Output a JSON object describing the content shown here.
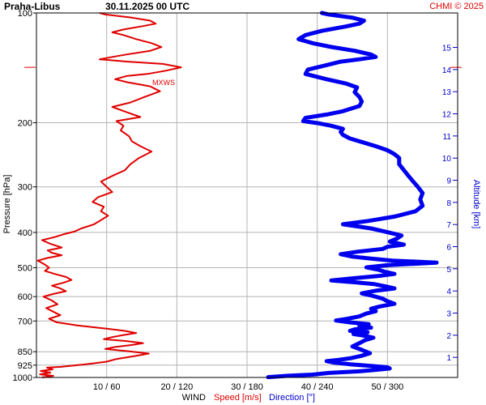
{
  "header": {
    "station": "Praha-Libus",
    "datetime": "30.11.2025 00 UTC",
    "copyright": "CHMI © 2025"
  },
  "axis_labels": {
    "pressure": "Pressure [hPa]",
    "altitude": "Altitude [km]",
    "wind": "WIND",
    "speed": "Speed [m/s]",
    "direction": "Direction [°]"
  },
  "colors": {
    "speed": "#e00000",
    "direction": "#0000ee",
    "altitude_axis": "#0000cc",
    "grid": "#b4b4b4"
  },
  "chart_data": {
    "type": "line",
    "title": "Praha-Libus 30.11.2025 00 UTC",
    "xlabel": "WIND Speed [m/s] / Direction [°]",
    "ylabel": "Pressure [hPa]",
    "y2label": "Altitude [km]",
    "y_scale": "log",
    "ylim": [
      1000,
      100
    ],
    "speed_xlim": [
      0,
      60
    ],
    "direction_xlim": [
      0,
      360
    ],
    "grid": true,
    "x_ticks": [
      "10 / 60",
      "20 / 120",
      "30 / 180",
      "40 / 240",
      "50 / 300"
    ],
    "pressure_ticks": [
      100,
      200,
      300,
      400,
      500,
      600,
      700,
      850,
      925,
      1000
    ],
    "altitude_ticks": [
      1,
      2,
      3,
      4,
      5,
      6,
      7,
      8,
      9,
      10,
      11,
      12,
      13,
      14,
      15
    ],
    "annotation": "MXWS",
    "max_wind_pressure": 141,
    "series": [
      {
        "name": "Speed [m/s]",
        "unit": "m/s",
        "points": [
          [
            1000,
            0.8
          ],
          [
            990,
            2.4
          ],
          [
            980,
            0.5
          ],
          [
            970,
            2.0
          ],
          [
            960,
            0.6
          ],
          [
            950,
            2.3
          ],
          [
            940,
            1.5
          ],
          [
            935,
            3.5
          ],
          [
            920,
            7.0
          ],
          [
            905,
            10.0
          ],
          [
            890,
            11.4
          ],
          [
            875,
            13.8
          ],
          [
            860,
            16.0
          ],
          [
            848,
            13.2
          ],
          [
            835,
            9.8
          ],
          [
            825,
            11.2
          ],
          [
            815,
            13.5
          ],
          [
            805,
            15.2
          ],
          [
            795,
            13.0
          ],
          [
            785,
            9.6
          ],
          [
            775,
            10.8
          ],
          [
            765,
            12.4
          ],
          [
            755,
            14.2
          ],
          [
            745,
            12.6
          ],
          [
            735,
            10.0
          ],
          [
            720,
            5.8
          ],
          [
            705,
            2.8
          ],
          [
            690,
            1.8
          ],
          [
            675,
            3.4
          ],
          [
            660,
            2.4
          ],
          [
            645,
            1.4
          ],
          [
            630,
            3.0
          ],
          [
            615,
            2.2
          ],
          [
            600,
            1.0
          ],
          [
            590,
            2.4
          ],
          [
            580,
            4.2
          ],
          [
            570,
            3.4
          ],
          [
            560,
            2.2
          ],
          [
            550,
            3.8
          ],
          [
            540,
            5.0
          ],
          [
            530,
            4.2
          ],
          [
            520,
            2.6
          ],
          [
            510,
            1.2
          ],
          [
            500,
            1.8
          ],
          [
            490,
            1.2
          ],
          [
            478,
            0.2
          ],
          [
            470,
            1.6
          ],
          [
            462,
            3.6
          ],
          [
            455,
            2.2
          ],
          [
            448,
            1.6
          ],
          [
            440,
            3.6
          ],
          [
            430,
            2.0
          ],
          [
            420,
            0.8
          ],
          [
            412,
            2.6
          ],
          [
            405,
            3.8
          ],
          [
            398,
            5.4
          ],
          [
            390,
            6.4
          ],
          [
            380,
            8.2
          ],
          [
            370,
            9.2
          ],
          [
            360,
            10.2
          ],
          [
            350,
            9.2
          ],
          [
            340,
            9.6
          ],
          [
            330,
            8.0
          ],
          [
            320,
            8.8
          ],
          [
            310,
            10.8
          ],
          [
            300,
            10.0
          ],
          [
            290,
            9.2
          ],
          [
            280,
            10.8
          ],
          [
            270,
            12.6
          ],
          [
            260,
            13.4
          ],
          [
            250,
            14.6
          ],
          [
            240,
            16.4
          ],
          [
            232,
            14.8
          ],
          [
            225,
            13.6
          ],
          [
            218,
            13.2
          ],
          [
            210,
            12.0
          ],
          [
            204,
            12.4
          ],
          [
            198,
            11.4
          ],
          [
            193,
            14.8
          ],
          [
            187,
            12.8
          ],
          [
            181,
            10.8
          ],
          [
            176,
            13.4
          ],
          [
            170,
            15.4
          ],
          [
            164,
            17.6
          ],
          [
            159,
            16.2
          ],
          [
            155,
            13.0
          ],
          [
            152,
            11.2
          ],
          [
            149,
            12.8
          ],
          [
            147,
            15.8
          ],
          [
            144,
            18.4
          ],
          [
            141,
            20.6
          ],
          [
            138,
            18.0
          ],
          [
            136,
            13.0
          ],
          [
            134,
            9.0
          ],
          [
            132,
            10.8
          ],
          [
            130,
            12.8
          ],
          [
            127,
            16.2
          ],
          [
            124,
            17.8
          ],
          [
            121,
            16.4
          ],
          [
            118,
            14.2
          ],
          [
            115,
            12.4
          ],
          [
            113,
            10.8
          ],
          [
            111,
            12.4
          ],
          [
            109,
            14.8
          ],
          [
            107,
            17.0
          ],
          [
            105,
            16.2
          ],
          [
            103,
            13.6
          ],
          [
            101,
            9.8
          ],
          [
            100,
            9.0
          ]
        ]
      },
      {
        "name": "Direction [°]",
        "unit": "deg",
        "points": [
          [
            998,
            198
          ],
          [
            990,
            214
          ],
          [
            982,
            236
          ],
          [
            972,
            250
          ],
          [
            962,
            276
          ],
          [
            953,
            290
          ],
          [
            945,
            302
          ],
          [
            938,
            300
          ],
          [
            930,
            286
          ],
          [
            920,
            268
          ],
          [
            910,
            254
          ],
          [
            902,
            248
          ],
          [
            895,
            258
          ],
          [
            885,
            269
          ],
          [
            872,
            278
          ],
          [
            858,
            285
          ],
          [
            840,
            278
          ],
          [
            822,
            270
          ],
          [
            805,
            276
          ],
          [
            790,
            281
          ],
          [
            778,
            288
          ],
          [
            768,
            280
          ],
          [
            760,
            271
          ],
          [
            752,
            283
          ],
          [
            745,
            268
          ],
          [
            738,
            272
          ],
          [
            730,
            286
          ],
          [
            722,
            276
          ],
          [
            714,
            284
          ],
          [
            706,
            268
          ],
          [
            698,
            256
          ],
          [
            690,
            266
          ],
          [
            680,
            276
          ],
          [
            668,
            282
          ],
          [
            658,
            290
          ],
          [
            648,
            286
          ],
          [
            638,
            294
          ],
          [
            628,
            306
          ],
          [
            618,
            300
          ],
          [
            608,
            296
          ],
          [
            598,
            288
          ],
          [
            588,
            278
          ],
          [
            578,
            290
          ],
          [
            570,
            306
          ],
          [
            562,
            298
          ],
          [
            554,
            288
          ],
          [
            548,
            272
          ],
          [
            542,
            252
          ],
          [
            534,
            272
          ],
          [
            527,
            292
          ],
          [
            520,
            306
          ],
          [
            513,
            298
          ],
          [
            506,
            292
          ],
          [
            499,
            282
          ],
          [
            492,
            300
          ],
          [
            484,
            342
          ],
          [
            478,
            304
          ],
          [
            472,
            286
          ],
          [
            466,
            270
          ],
          [
            459,
            260
          ],
          [
            452,
            274
          ],
          [
            444,
            296
          ],
          [
            438,
            300
          ],
          [
            432,
            314
          ],
          [
            424,
            302
          ],
          [
            416,
            308
          ],
          [
            408,
            312
          ],
          [
            398,
            298
          ],
          [
            390,
            286
          ],
          [
            380,
            262
          ],
          [
            372,
            284
          ],
          [
            362,
            306
          ],
          [
            350,
            324
          ],
          [
            338,
            330
          ],
          [
            325,
            328
          ],
          [
            312,
            330
          ],
          [
            300,
            326
          ],
          [
            290,
            322
          ],
          [
            280,
            318
          ],
          [
            270,
            314
          ],
          [
            260,
            310
          ],
          [
            250,
            310
          ],
          [
            244,
            306
          ],
          [
            238,
            300
          ],
          [
            232,
            290
          ],
          [
            226,
            278
          ],
          [
            221,
            268
          ],
          [
            216,
            262
          ],
          [
            212,
            260
          ],
          [
            208,
            262
          ],
          [
            204,
            252
          ],
          [
            201,
            242
          ],
          [
            198,
            228
          ],
          [
            194,
            230
          ],
          [
            190,
            248
          ],
          [
            186,
            262
          ],
          [
            180,
            276
          ],
          [
            175,
            278
          ],
          [
            170,
            276
          ],
          [
            165,
            272
          ],
          [
            160,
            274
          ],
          [
            156,
            264
          ],
          [
            152,
            248
          ],
          [
            147,
            230
          ],
          [
            143,
            232
          ],
          [
            140,
            244
          ],
          [
            138,
            252
          ],
          [
            136,
            260
          ],
          [
            134,
            276
          ],
          [
            132,
            290
          ],
          [
            130,
            286
          ],
          [
            127,
            272
          ],
          [
            124,
            252
          ],
          [
            121,
            236
          ],
          [
            118,
            224
          ],
          [
            115,
            230
          ],
          [
            112,
            244
          ],
          [
            109,
            264
          ],
          [
            107,
            276
          ],
          [
            105,
            280
          ],
          [
            103,
            270
          ],
          [
            101,
            250
          ],
          [
            100,
            244
          ]
        ]
      }
    ]
  }
}
